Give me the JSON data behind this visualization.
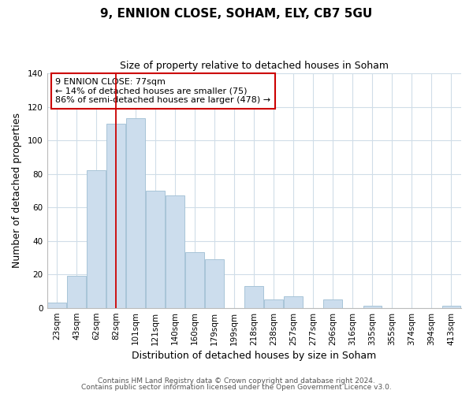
{
  "title": "9, ENNION CLOSE, SOHAM, ELY, CB7 5GU",
  "subtitle": "Size of property relative to detached houses in Soham",
  "xlabel": "Distribution of detached houses by size in Soham",
  "ylabel": "Number of detached properties",
  "bar_labels": [
    "23sqm",
    "43sqm",
    "62sqm",
    "82sqm",
    "101sqm",
    "121sqm",
    "140sqm",
    "160sqm",
    "179sqm",
    "199sqm",
    "218sqm",
    "238sqm",
    "257sqm",
    "277sqm",
    "296sqm",
    "316sqm",
    "335sqm",
    "355sqm",
    "374sqm",
    "394sqm",
    "413sqm"
  ],
  "bar_values": [
    3,
    19,
    82,
    110,
    113,
    70,
    67,
    33,
    29,
    0,
    13,
    5,
    7,
    0,
    5,
    0,
    1,
    0,
    0,
    0,
    1
  ],
  "bar_color": "#ccdded",
  "bar_edge_color": "#a8c4d8",
  "ylim": [
    0,
    140
  ],
  "yticks": [
    0,
    20,
    40,
    60,
    80,
    100,
    120,
    140
  ],
  "vline_x": 3,
  "vline_color": "#cc0000",
  "annotation_text": "9 ENNION CLOSE: 77sqm\n← 14% of detached houses are smaller (75)\n86% of semi-detached houses are larger (478) →",
  "annotation_box_color": "#ffffff",
  "annotation_box_edge": "#cc0000",
  "footer_line1": "Contains HM Land Registry data © Crown copyright and database right 2024.",
  "footer_line2": "Contains public sector information licensed under the Open Government Licence v3.0.",
  "background_color": "#ffffff",
  "grid_color": "#d0dde8",
  "title_fontsize": 11,
  "subtitle_fontsize": 9,
  "axis_label_fontsize": 9,
  "tick_fontsize": 7.5,
  "annotation_fontsize": 8,
  "footer_fontsize": 6.5
}
